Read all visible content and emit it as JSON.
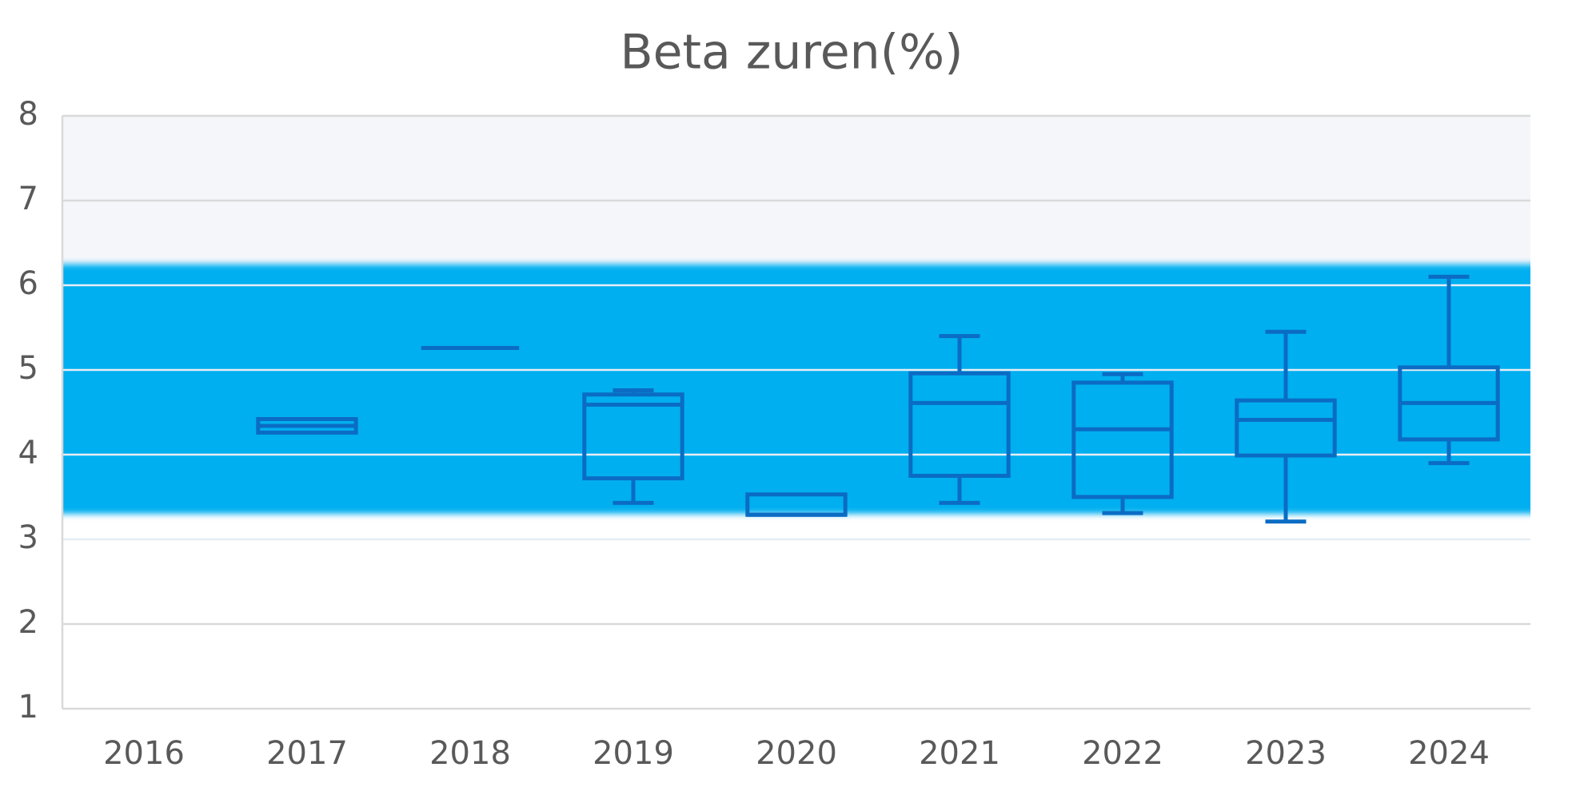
{
  "chart_data": {
    "type": "box",
    "title": "Beta zuren(%)",
    "categories": [
      "2016",
      "2017",
      "2018",
      "2019",
      "2020",
      "2021",
      "2022",
      "2023",
      "2024"
    ],
    "min": [
      null,
      4.26,
      5.26,
      3.43,
      3.29,
      3.43,
      3.31,
      3.21,
      3.9
    ],
    "q1": [
      null,
      4.26,
      5.26,
      3.72,
      3.29,
      3.75,
      3.5,
      3.99,
      4.18
    ],
    "median": [
      null,
      4.34,
      5.26,
      4.59,
      3.29,
      4.61,
      4.3,
      4.41,
      4.61
    ],
    "q3": [
      null,
      4.42,
      5.26,
      4.71,
      3.53,
      4.96,
      4.85,
      4.64,
      5.03
    ],
    "max": [
      null,
      4.42,
      5.26,
      4.76,
      3.53,
      5.4,
      4.95,
      5.45,
      6.1
    ],
    "color": "#0b6cc4",
    "bands": [
      {
        "from": 6.25,
        "to": 8,
        "color": "#f5f6fa"
      },
      {
        "from": 3.3,
        "to": 6.25,
        "color": "#03aff0"
      }
    ],
    "ylim": [
      1,
      8
    ],
    "yticks": [
      1,
      2,
      3,
      4,
      5,
      6,
      7,
      8
    ],
    "grid": true
  }
}
